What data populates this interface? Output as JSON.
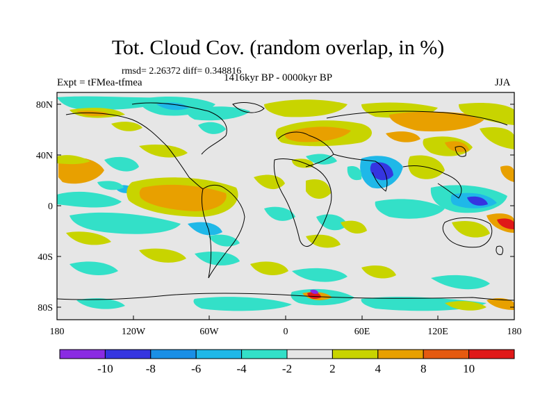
{
  "title": "Tot. Cloud Cov. (random overlap, in %)",
  "stats_text": "rmsd= 2.26372 diff= 0.348816",
  "experiment": "Expt = tFMea-tfmea",
  "period": "1416kyr BP - 0000kyr BP",
  "season": "JJA",
  "lat_ticks": [
    "80N",
    "40N",
    "0",
    "40S",
    "80S"
  ],
  "lon_ticks": [
    "180",
    "120W",
    "60W",
    "0",
    "60E",
    "120E",
    "180"
  ],
  "colorbar": {
    "labels": [
      "-10",
      "-8",
      "-6",
      "-4",
      "-2",
      "2",
      "4",
      "8",
      "10"
    ],
    "colors": [
      "#8a2be2",
      "#3535e0",
      "#1a8fe6",
      "#1fb8e8",
      "#33e0c8",
      "#e6e6e6",
      "#c8d400",
      "#e8a000",
      "#e55a10",
      "#e01818"
    ]
  },
  "colors": {
    "background_field": "#e6e6e6",
    "coastline": "#000000"
  }
}
